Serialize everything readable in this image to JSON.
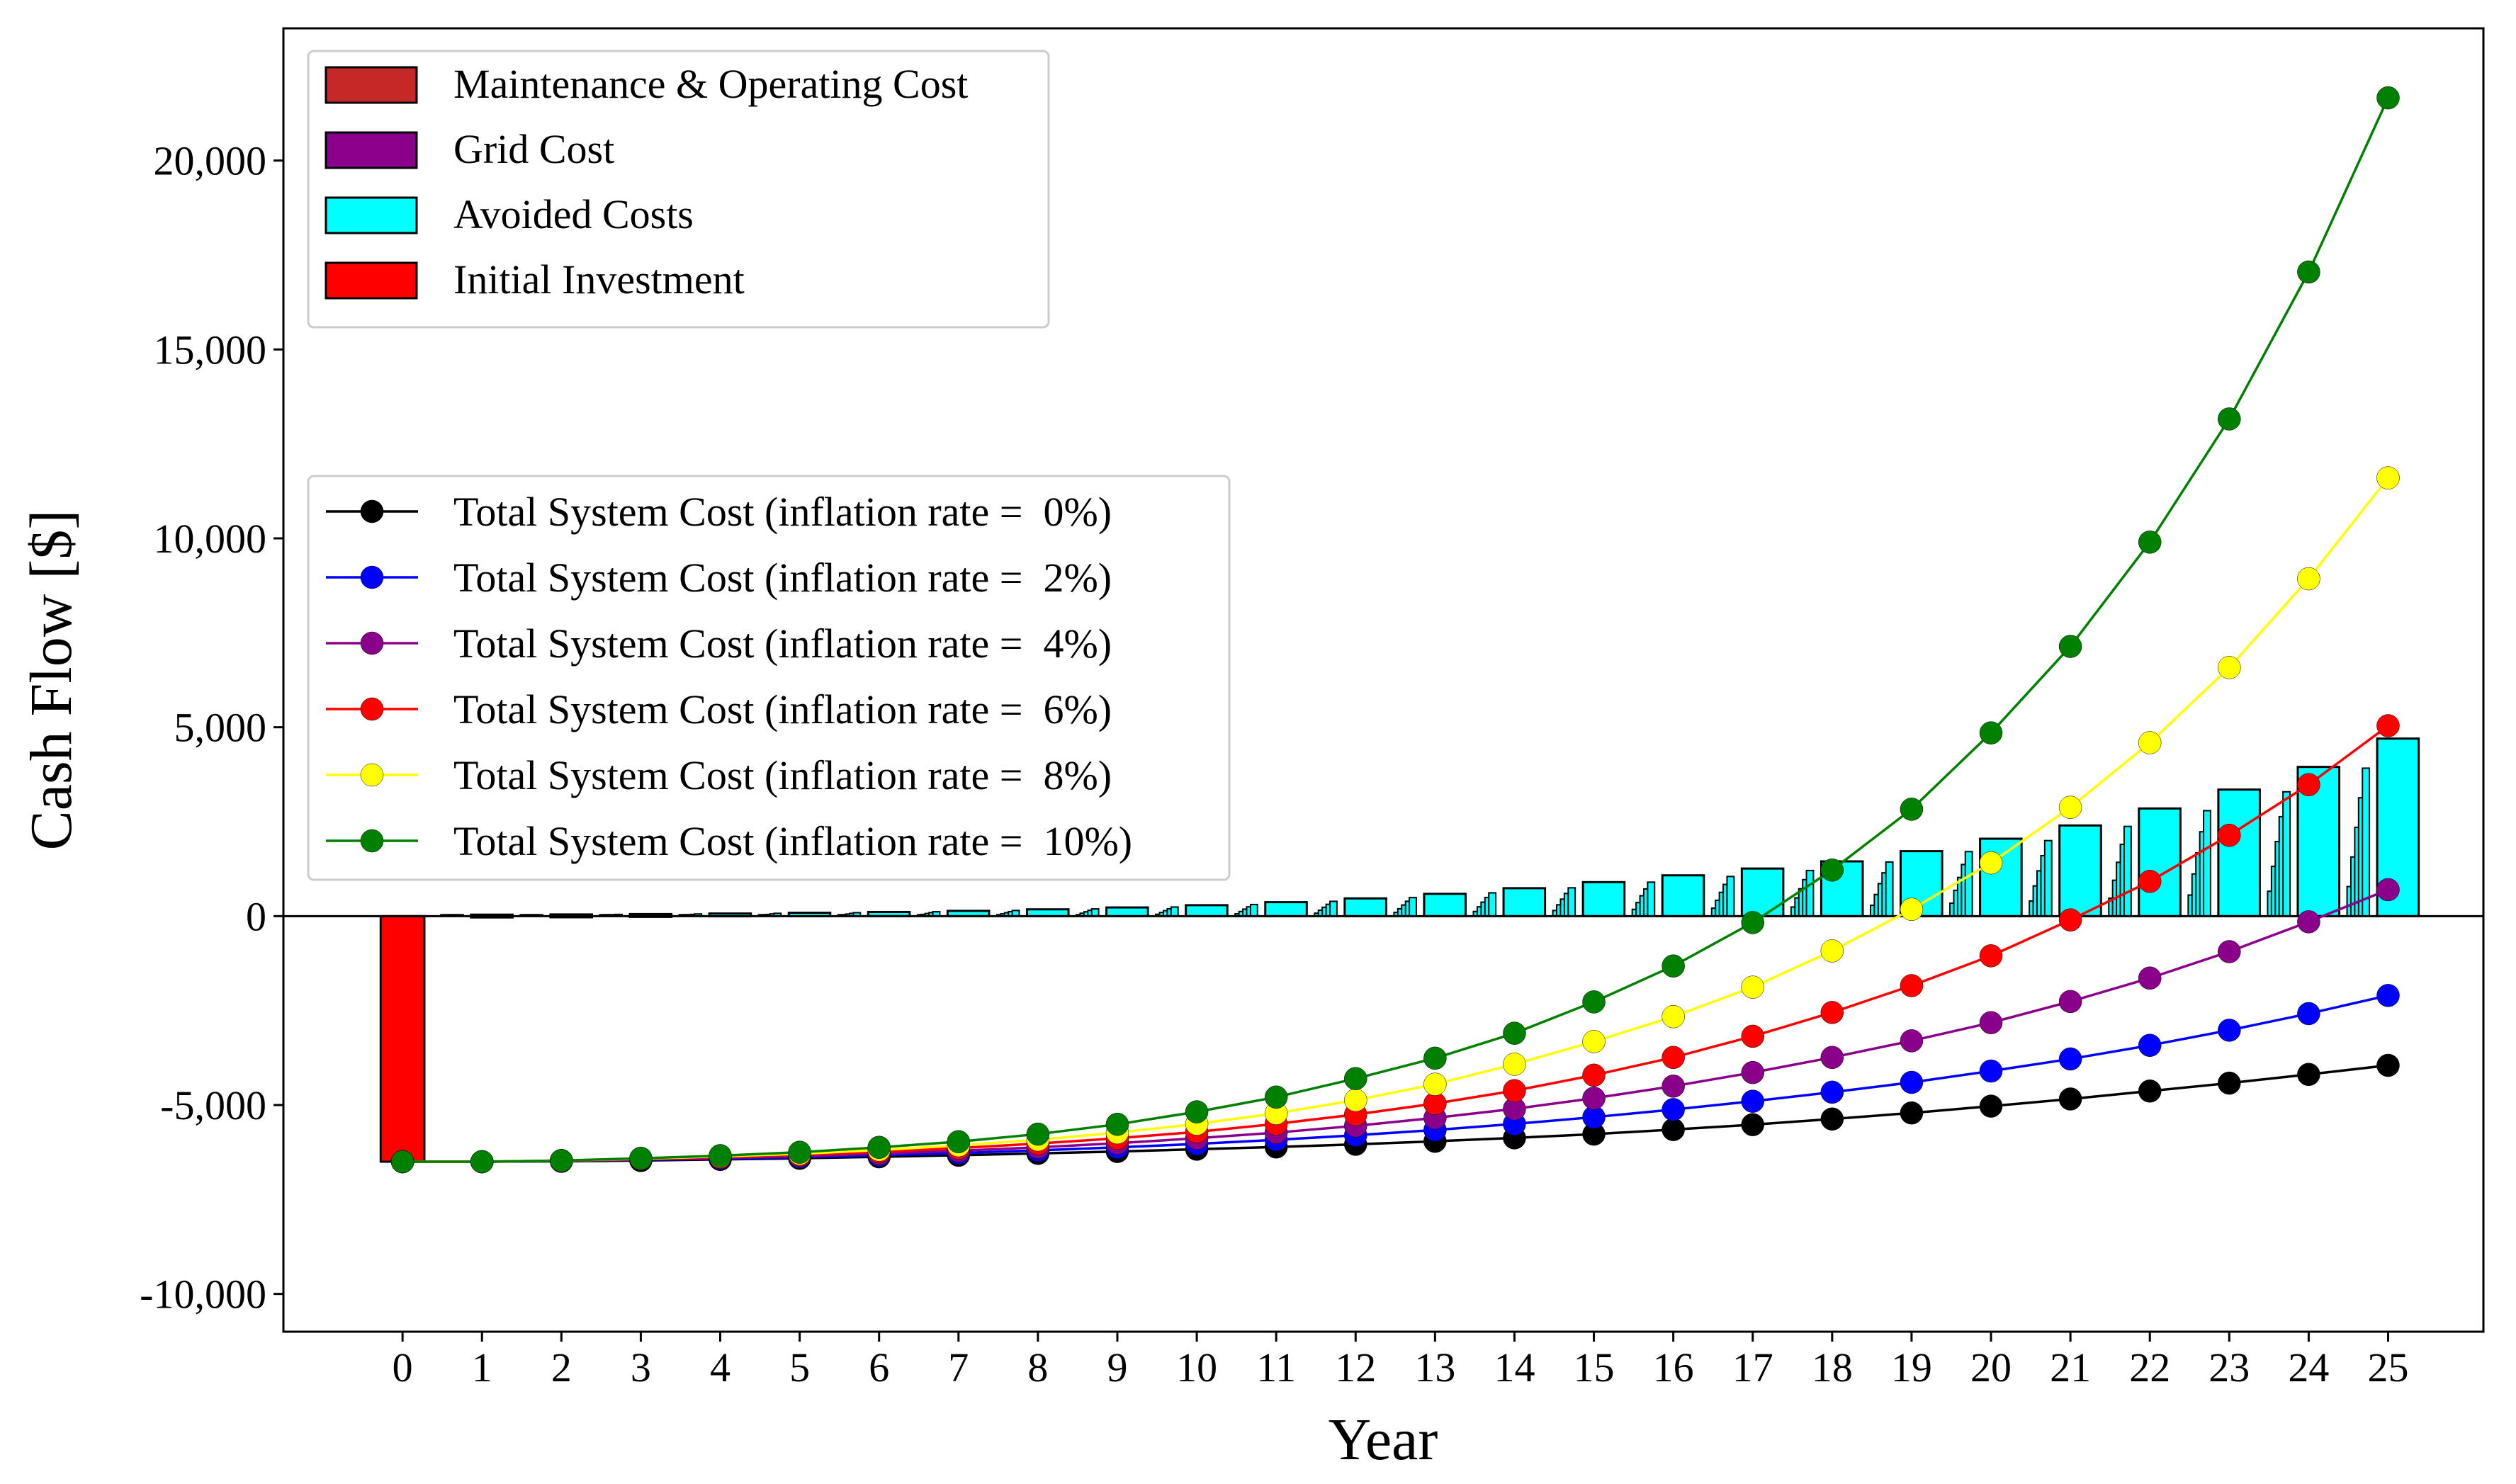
{
  "chart_data": {
    "type": "bar+line",
    "xlabel": "Year",
    "ylabel": "Cash Flow [$]",
    "x": [
      0,
      1,
      2,
      3,
      4,
      5,
      6,
      7,
      8,
      9,
      10,
      11,
      12,
      13,
      14,
      15,
      16,
      17,
      18,
      19,
      20,
      21,
      22,
      23,
      24,
      25
    ],
    "ylim": [
      -11000,
      23500
    ],
    "xlim": [
      -1.5,
      26.2
    ],
    "yticks": [
      -10000,
      -5000,
      0,
      5000,
      10000,
      15000,
      20000
    ],
    "ytick_labels": [
      "-10,000",
      "-5,000",
      "0",
      "5,000",
      "10,000",
      "15,000",
      "20,000"
    ],
    "xtick_labels": [
      "0",
      "1",
      "2",
      "3",
      "4",
      "5",
      "6",
      "7",
      "8",
      "9",
      "10",
      "11",
      "12",
      "13",
      "14",
      "15",
      "16",
      "17",
      "18",
      "19",
      "20",
      "21",
      "22",
      "23",
      "24",
      "25"
    ],
    "bar_legend": [
      {
        "label": "Maintenance & Operating Cost",
        "color": "#c62828"
      },
      {
        "label": "Grid Cost",
        "color": "#8b008b"
      },
      {
        "label": "Avoided Costs",
        "color": "#00ffff"
      },
      {
        "label": "Initial Investment",
        "color": "#ff0000"
      }
    ],
    "initial_investment": -6500,
    "avoided_costs": [
      0,
      40,
      45,
      55,
      70,
      90,
      110,
      140,
      180,
      230,
      290,
      370,
      470,
      590,
      740,
      900,
      1080,
      1260,
      1450,
      1720,
      2050,
      2400,
      2850,
      3350,
      3950,
      4700
    ],
    "series": [
      {
        "name": "Total System Cost (inflation rate =  0%)",
        "color": "#000000",
        "values": [
          -6500,
          -6500,
          -6490,
          -6470,
          -6440,
          -6410,
          -6370,
          -6330,
          -6280,
          -6230,
          -6170,
          -6110,
          -6040,
          -5960,
          -5870,
          -5770,
          -5650,
          -5520,
          -5370,
          -5210,
          -5030,
          -4840,
          -4630,
          -4420,
          -4190,
          -3950
        ]
      },
      {
        "name": "Total System Cost (inflation rate =  2%)",
        "color": "#0000ff",
        "values": [
          -6500,
          -6500,
          -6480,
          -6450,
          -6420,
          -6380,
          -6330,
          -6270,
          -6200,
          -6120,
          -6030,
          -5920,
          -5800,
          -5660,
          -5500,
          -5320,
          -5120,
          -4900,
          -4660,
          -4400,
          -4100,
          -3780,
          -3420,
          -3020,
          -2580,
          -2100
        ]
      },
      {
        "name": "Total System Cost (inflation rate =  4%)",
        "color": "#8b008b",
        "values": [
          -6500,
          -6500,
          -6480,
          -6440,
          -6400,
          -6350,
          -6290,
          -6210,
          -6120,
          -6010,
          -5880,
          -5730,
          -5550,
          -5340,
          -5100,
          -4820,
          -4500,
          -4140,
          -3740,
          -3300,
          -2820,
          -2260,
          -1640,
          -940,
          -150,
          700
        ]
      },
      {
        "name": "Total System Cost (inflation rate =  6%)",
        "color": "#ff0000",
        "values": [
          -6500,
          -6500,
          -6470,
          -6430,
          -6380,
          -6320,
          -6240,
          -6140,
          -6020,
          -5880,
          -5710,
          -5500,
          -5250,
          -4960,
          -4620,
          -4210,
          -3740,
          -3180,
          -2550,
          -1840,
          -1050,
          -100,
          920,
          2140,
          3480,
          5040
        ]
      },
      {
        "name": "Total System Cost (inflation rate =  8%)",
        "color": "#ffff00",
        "values": [
          -6500,
          -6500,
          -6470,
          -6420,
          -6360,
          -6290,
          -6190,
          -6070,
          -5920,
          -5730,
          -5500,
          -5220,
          -4870,
          -4450,
          -3920,
          -3320,
          -2660,
          -1880,
          -920,
          180,
          1410,
          2880,
          4590,
          6580,
          8930,
          11600
        ]
      },
      {
        "name": "Total System Cost (inflation rate =  10%)",
        "color": "#008000",
        "values": [
          -6500,
          -6500,
          -6470,
          -6410,
          -6340,
          -6250,
          -6120,
          -5970,
          -5770,
          -5510,
          -5180,
          -4790,
          -4300,
          -3760,
          -3100,
          -2270,
          -1320,
          -170,
          1220,
          2830,
          4850,
          7140,
          9900,
          13160,
          17050,
          21660
        ]
      }
    ]
  }
}
